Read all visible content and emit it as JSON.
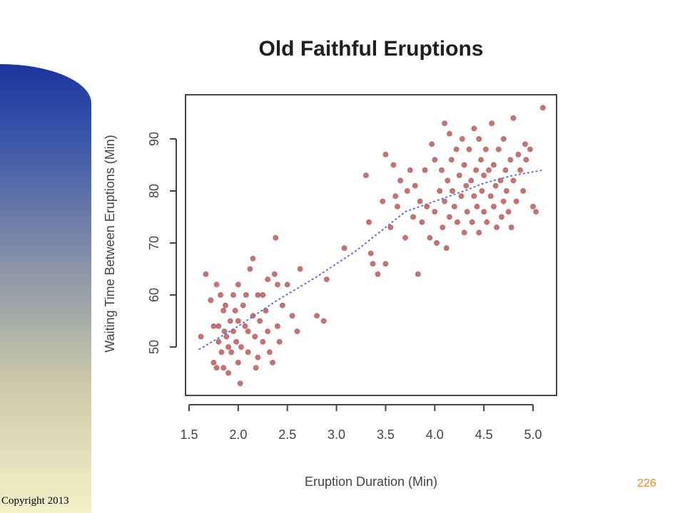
{
  "slide": {
    "copyright": "Copyright 2013",
    "page_number": "226"
  },
  "chart_data": {
    "type": "scatter",
    "title": "Old Faithful Eruptions",
    "xlabel": "Eruption Duration (Min)",
    "ylabel": "Waiting Time Between Eruptions (Min)",
    "xlim": [
      1.45,
      5.25
    ],
    "ylim": [
      42,
      100
    ],
    "x_ticks": [
      "1.5",
      "2.0",
      "2.5",
      "3.0",
      "3.5",
      "4.0",
      "4.5",
      "5.0"
    ],
    "y_ticks": [
      "50",
      "60",
      "70",
      "80",
      "90"
    ],
    "colors": {
      "points": "#a83838",
      "trend": "#6b6bdb",
      "frame": "#444444"
    },
    "series": [
      {
        "points": [
          [
            1.62,
            52
          ],
          [
            1.67,
            64
          ],
          [
            1.72,
            59
          ],
          [
            1.75,
            54
          ],
          [
            1.78,
            62
          ],
          [
            1.75,
            47
          ],
          [
            1.78,
            46
          ],
          [
            1.8,
            51
          ],
          [
            1.8,
            54
          ],
          [
            1.82,
            60
          ],
          [
            1.83,
            49
          ],
          [
            1.85,
            57
          ],
          [
            1.85,
            46
          ],
          [
            1.86,
            53
          ],
          [
            1.87,
            58
          ],
          [
            1.88,
            52
          ],
          [
            1.9,
            45
          ],
          [
            1.9,
            50
          ],
          [
            1.92,
            55
          ],
          [
            1.93,
            49
          ],
          [
            1.95,
            60
          ],
          [
            1.95,
            53
          ],
          [
            1.97,
            57
          ],
          [
            1.98,
            51
          ],
          [
            2.0,
            62
          ],
          [
            2.0,
            55
          ],
          [
            2.0,
            47
          ],
          [
            2.02,
            43
          ],
          [
            2.03,
            50
          ],
          [
            2.05,
            58
          ],
          [
            2.07,
            54
          ],
          [
            2.08,
            60
          ],
          [
            2.1,
            49
          ],
          [
            2.1,
            53
          ],
          [
            2.12,
            65
          ],
          [
            2.15,
            67
          ],
          [
            2.15,
            56
          ],
          [
            2.17,
            52
          ],
          [
            2.18,
            46
          ],
          [
            2.2,
            60
          ],
          [
            2.2,
            48
          ],
          [
            2.22,
            55
          ],
          [
            2.25,
            60
          ],
          [
            2.25,
            51
          ],
          [
            2.28,
            57
          ],
          [
            2.3,
            63
          ],
          [
            2.3,
            53
          ],
          [
            2.32,
            49
          ],
          [
            2.35,
            47
          ],
          [
            2.37,
            64
          ],
          [
            2.38,
            71
          ],
          [
            2.4,
            54
          ],
          [
            2.4,
            62
          ],
          [
            2.42,
            51
          ],
          [
            2.45,
            58
          ],
          [
            2.5,
            62
          ],
          [
            2.55,
            56
          ],
          [
            2.6,
            53
          ],
          [
            2.63,
            65
          ],
          [
            2.8,
            56
          ],
          [
            2.87,
            55
          ],
          [
            2.9,
            63
          ],
          [
            3.08,
            69
          ],
          [
            3.3,
            83
          ],
          [
            3.33,
            74
          ],
          [
            3.35,
            68
          ],
          [
            3.37,
            66
          ],
          [
            3.42,
            64
          ],
          [
            3.47,
            78
          ],
          [
            3.5,
            87
          ],
          [
            3.5,
            66
          ],
          [
            3.55,
            73
          ],
          [
            3.58,
            85
          ],
          [
            3.6,
            79
          ],
          [
            3.62,
            77
          ],
          [
            3.65,
            82
          ],
          [
            3.7,
            71
          ],
          [
            3.72,
            80
          ],
          [
            3.75,
            84
          ],
          [
            3.78,
            75
          ],
          [
            3.8,
            81
          ],
          [
            3.83,
            64
          ],
          [
            3.85,
            78
          ],
          [
            3.87,
            74
          ],
          [
            3.9,
            84
          ],
          [
            3.92,
            77
          ],
          [
            3.95,
            71
          ],
          [
            3.97,
            89
          ],
          [
            4.0,
            86
          ],
          [
            4.0,
            76
          ],
          [
            4.02,
            70
          ],
          [
            4.05,
            80
          ],
          [
            4.07,
            84
          ],
          [
            4.08,
            73
          ],
          [
            4.1,
            93
          ],
          [
            4.1,
            78
          ],
          [
            4.12,
            69
          ],
          [
            4.13,
            82
          ],
          [
            4.15,
            91
          ],
          [
            4.15,
            75
          ],
          [
            4.17,
            86
          ],
          [
            4.18,
            80
          ],
          [
            4.2,
            77
          ],
          [
            4.22,
            88
          ],
          [
            4.23,
            74
          ],
          [
            4.25,
            83
          ],
          [
            4.27,
            79
          ],
          [
            4.28,
            90
          ],
          [
            4.3,
            72
          ],
          [
            4.3,
            85
          ],
          [
            4.32,
            81
          ],
          [
            4.33,
            76
          ],
          [
            4.35,
            88
          ],
          [
            4.37,
            82
          ],
          [
            4.38,
            74
          ],
          [
            4.4,
            92
          ],
          [
            4.4,
            79
          ],
          [
            4.42,
            84
          ],
          [
            4.43,
            77
          ],
          [
            4.45,
            90
          ],
          [
            4.45,
            72
          ],
          [
            4.47,
            86
          ],
          [
            4.48,
            80
          ],
          [
            4.5,
            83
          ],
          [
            4.5,
            76
          ],
          [
            4.52,
            88
          ],
          [
            4.53,
            74
          ],
          [
            4.55,
            84
          ],
          [
            4.57,
            79
          ],
          [
            4.58,
            93
          ],
          [
            4.6,
            85
          ],
          [
            4.6,
            77
          ],
          [
            4.62,
            81
          ],
          [
            4.63,
            73
          ],
          [
            4.65,
            88
          ],
          [
            4.67,
            82
          ],
          [
            4.68,
            75
          ],
          [
            4.7,
            90
          ],
          [
            4.7,
            78
          ],
          [
            4.72,
            84
          ],
          [
            4.73,
            80
          ],
          [
            4.75,
            76
          ],
          [
            4.77,
            86
          ],
          [
            4.78,
            73
          ],
          [
            4.8,
            94
          ],
          [
            4.8,
            82
          ],
          [
            4.83,
            78
          ],
          [
            4.85,
            87
          ],
          [
            4.87,
            84
          ],
          [
            4.9,
            80
          ],
          [
            4.92,
            89
          ],
          [
            4.93,
            86
          ],
          [
            4.97,
            88
          ],
          [
            5.0,
            77
          ],
          [
            5.03,
            76
          ],
          [
            5.1,
            96
          ]
        ]
      }
    ],
    "trend_line": [
      [
        1.6,
        49.5
      ],
      [
        2.0,
        54
      ],
      [
        2.4,
        59
      ],
      [
        2.8,
        63.5
      ],
      [
        3.2,
        68.5
      ],
      [
        3.5,
        73
      ],
      [
        3.7,
        76
      ],
      [
        4.0,
        78
      ],
      [
        4.3,
        80
      ],
      [
        4.5,
        81.5
      ],
      [
        4.8,
        83
      ],
      [
        5.1,
        84
      ]
    ]
  }
}
